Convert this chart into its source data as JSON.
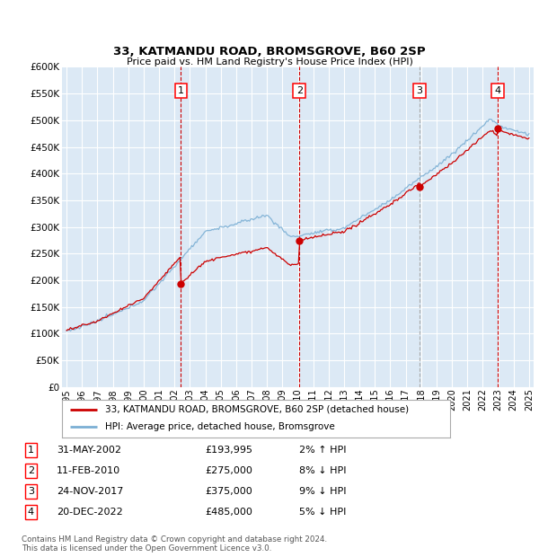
{
  "title1": "33, KATMANDU ROAD, BROMSGROVE, B60 2SP",
  "title2": "Price paid vs. HM Land Registry's House Price Index (HPI)",
  "fig_bg": "#ffffff",
  "plot_bg_color": "#dce9f5",
  "grid_color": "#ffffff",
  "hpi_color": "#7bafd4",
  "price_color": "#cc0000",
  "ylim": [
    0,
    600000
  ],
  "yticks": [
    0,
    50000,
    100000,
    150000,
    200000,
    250000,
    300000,
    350000,
    400000,
    450000,
    500000,
    550000,
    600000
  ],
  "xlim_start": 1994.7,
  "xlim_end": 2025.3,
  "sale_dates": [
    2002.42,
    2010.11,
    2017.9,
    2022.97
  ],
  "sale_prices": [
    193995,
    275000,
    375000,
    485000
  ],
  "sale_labels": [
    "1",
    "2",
    "3",
    "4"
  ],
  "legend_price_label": "33, KATMANDU ROAD, BROMSGROVE, B60 2SP (detached house)",
  "legend_hpi_label": "HPI: Average price, detached house, Bromsgrove",
  "table_rows": [
    [
      "1",
      "31-MAY-2002",
      "£193,995",
      "2% ↑ HPI"
    ],
    [
      "2",
      "11-FEB-2010",
      "£275,000",
      "8% ↓ HPI"
    ],
    [
      "3",
      "24-NOV-2017",
      "£375,000",
      "9% ↓ HPI"
    ],
    [
      "4",
      "20-DEC-2022",
      "£485,000",
      "5% ↓ HPI"
    ]
  ],
  "footer": "Contains HM Land Registry data © Crown copyright and database right 2024.\nThis data is licensed under the Open Government Licence v3.0."
}
